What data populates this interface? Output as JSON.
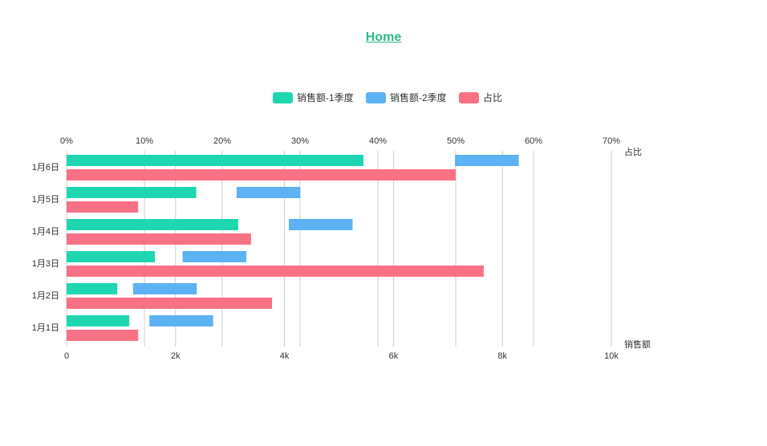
{
  "header": {
    "home_label": "Home"
  },
  "colors": {
    "link": "#2cb97f",
    "grid": "#cccccc",
    "text": "#333333",
    "series1": "#1ed7b0",
    "series2": "#5cb2f2",
    "ratio": "#f97185"
  },
  "chart_data": {
    "type": "bar",
    "orientation": "horizontal",
    "title": "",
    "categories": [
      "1月1日",
      "1月2日",
      "1月3日",
      "1月4日",
      "1月5日",
      "1月6日"
    ],
    "value_axis": {
      "label": "销售额",
      "ticks": [
        "0",
        "2k",
        "4k",
        "6k",
        "8k",
        "10k"
      ],
      "range": [
        0,
        10000
      ]
    },
    "percent_axis": {
      "label": "占比",
      "ticks": [
        "0%",
        "10%",
        "20%",
        "30%",
        "40%",
        "50%",
        "60%",
        "70%"
      ],
      "range": [
        0,
        0.7
      ]
    },
    "series": [
      {
        "name": "销售额-1季度",
        "values": [
          1150,
          930,
          1620,
          3150,
          2380,
          5450
        ],
        "stack": "sales",
        "axis": "value"
      },
      {
        "name": "销售额-2季度",
        "values": [
          1170,
          1170,
          1170,
          1170,
          1170,
          1170
        ],
        "stack": "sales",
        "gap_before": 380,
        "axis": "value"
      },
      {
        "name": "占比",
        "values": [
          0.092,
          0.264,
          0.536,
          0.237,
          0.092,
          0.5
        ],
        "axis": "percent"
      }
    ],
    "series2_start_values": [
      1520,
      1220,
      2130,
      4080,
      3120,
      7130
    ],
    "legend": {
      "position": "top-center"
    },
    "grid": true
  }
}
